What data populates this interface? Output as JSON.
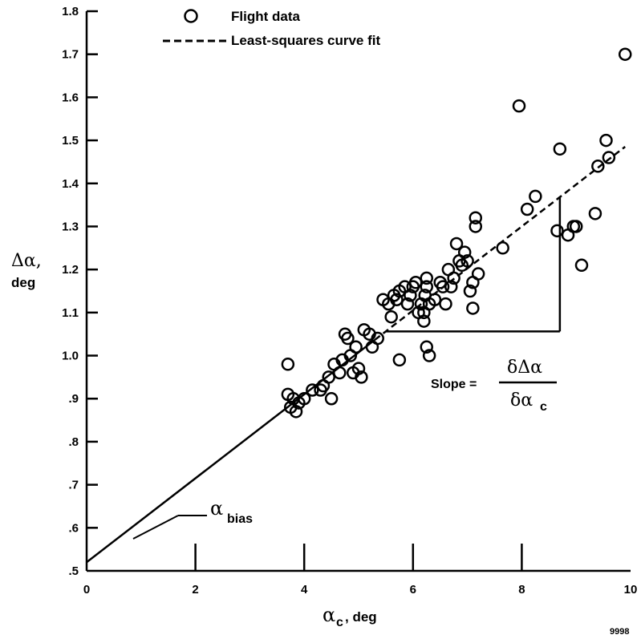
{
  "chart_data": {
    "type": "scatter",
    "xlabel": {
      "symbol": "α",
      "sub": "c",
      "unit": ", deg"
    },
    "ylabel": {
      "symbol": "Δα,",
      "unit": "deg"
    },
    "xlim": [
      0,
      10
    ],
    "ylim": [
      0.5,
      1.8
    ],
    "xticks": [
      0,
      2,
      4,
      6,
      8,
      10
    ],
    "xtick_labels": [
      "0",
      "2",
      "4",
      "6",
      "8",
      "10"
    ],
    "yticks": [
      0.5,
      0.6,
      0.7,
      0.8,
      0.9,
      1.0,
      1.1,
      1.2,
      1.3,
      1.4,
      1.5,
      1.6,
      1.7,
      1.8
    ],
    "ytick_labels": [
      ".5",
      ".6",
      ".7",
      ".8",
      ".9",
      "1.0",
      "1.1",
      "1.2",
      "1.3",
      "1.4",
      "1.5",
      "1.6",
      "1.7",
      "1.8"
    ],
    "grid": false,
    "legend_position": "top-center",
    "legend": [
      {
        "marker": "circle",
        "label": "Flight data"
      },
      {
        "marker": "dashed-line",
        "label": "Least-squares curve fit"
      }
    ],
    "series": [
      {
        "name": "Flight data",
        "marker": "open-circle",
        "x": [
          3.7,
          3.8,
          3.75,
          3.85,
          3.9,
          4.0,
          4.15,
          4.3,
          4.35,
          4.45,
          4.5,
          4.55,
          4.65,
          4.7,
          4.8,
          4.75,
          4.85,
          4.9,
          4.95,
          5.0,
          5.05,
          5.1,
          5.2,
          5.25,
          5.35,
          5.45,
          5.55,
          5.6,
          5.7,
          5.75,
          5.85,
          5.9,
          5.95,
          6.0,
          6.05,
          6.1,
          6.15,
          6.2,
          6.2,
          6.22,
          6.25,
          6.25,
          6.3,
          6.4,
          6.5,
          6.55,
          6.6,
          6.65,
          6.7,
          6.75,
          6.8,
          6.85,
          6.9,
          6.95,
          7.0,
          7.05,
          7.1,
          7.15,
          7.2,
          3.7,
          5.65,
          6.25,
          6.3,
          5.75,
          7.65,
          7.95,
          8.1,
          8.25,
          8.65,
          8.7,
          8.85,
          8.95,
          9.0,
          9.1,
          9.35,
          9.4,
          9.55,
          9.6,
          9.9,
          7.15,
          7.1
        ],
        "y": [
          0.91,
          0.9,
          0.88,
          0.87,
          0.89,
          0.9,
          0.92,
          0.92,
          0.93,
          0.95,
          0.9,
          0.98,
          0.96,
          0.99,
          1.04,
          1.05,
          1.0,
          0.96,
          1.02,
          0.97,
          0.95,
          1.06,
          1.05,
          1.02,
          1.04,
          1.13,
          1.12,
          1.09,
          1.13,
          1.15,
          1.16,
          1.12,
          1.14,
          1.16,
          1.17,
          1.1,
          1.12,
          1.08,
          1.1,
          1.14,
          1.16,
          1.18,
          1.12,
          1.13,
          1.17,
          1.16,
          1.12,
          1.2,
          1.16,
          1.18,
          1.26,
          1.22,
          1.21,
          1.24,
          1.22,
          1.15,
          1.17,
          1.3,
          1.19,
          0.98,
          1.14,
          1.02,
          1.0,
          0.99,
          1.25,
          1.58,
          1.34,
          1.37,
          1.29,
          1.48,
          1.28,
          1.3,
          1.3,
          1.21,
          1.33,
          1.44,
          1.5,
          1.46,
          1.7,
          1.32,
          1.11
        ]
      },
      {
        "name": "Least-squares curve fit",
        "type": "line",
        "intercept": 0.52,
        "slope": 0.0975,
        "solid_range": [
          0,
          5.3
        ],
        "dashed_range": [
          5.3,
          9.9
        ]
      }
    ],
    "annotations": [
      {
        "text": "Slope =",
        "fraction_numerator": "δΔα",
        "fraction_denominator": "δα",
        "fraction_denominator_sub": "c"
      },
      {
        "text": "α",
        "sub": "bias"
      },
      {
        "text": "9998"
      }
    ],
    "slope_triangle": {
      "x_left": 5.5,
      "x_right": 8.7
    }
  }
}
